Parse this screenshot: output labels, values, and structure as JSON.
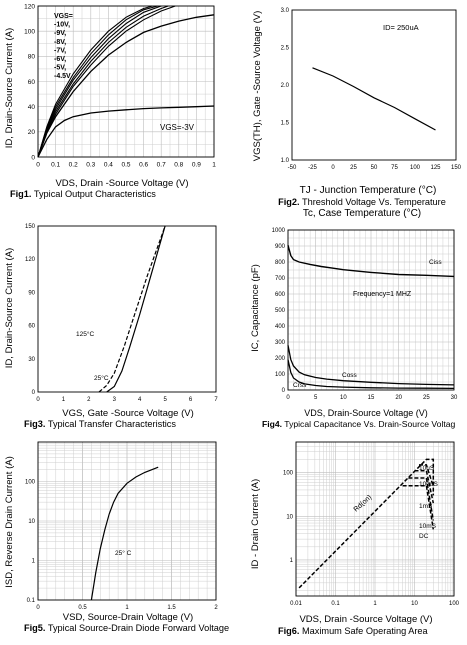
{
  "figures": [
    {
      "id": "fig1",
      "caption_num": "Fig1.",
      "caption_text": "Typical Output Characteristics",
      "chart_data": {
        "type": "line",
        "ylabel": "ID, Drain-Source Current (A)",
        "xlabel": "VDS, Drain -Source Voltage (V)",
        "xticks": [
          "0",
          "0.1",
          "0.2",
          "0.3",
          "0.4",
          "0.5",
          "0.6",
          "0.7",
          "0.8",
          "0.9",
          "1"
        ],
        "yticks": [
          "0",
          "20",
          "40",
          "60",
          "80",
          "100",
          "120"
        ],
        "xlim": [
          0,
          1
        ],
        "ylim": [
          0,
          120
        ],
        "grid": true,
        "legend_lines": [
          "VGS=",
          "-10V,",
          "-9V,",
          "-8V,",
          "-7V,",
          "-6V,",
          "-5V,",
          "-4.5V"
        ],
        "annotation": "VGS=-3V",
        "series": [
          {
            "x": [
              0,
              0.05,
              0.1,
              0.2,
              0.3,
              0.4,
              0.5,
              0.6,
              0.65
            ],
            "y": [
              0,
              24,
              42,
              66,
              85,
              100,
              111,
              118,
              120
            ]
          },
          {
            "x": [
              0,
              0.05,
              0.1,
              0.2,
              0.3,
              0.4,
              0.5,
              0.6,
              0.68
            ],
            "y": [
              0,
              23,
              40,
              63,
              82,
              97,
              109,
              117,
              120
            ]
          },
          {
            "x": [
              0,
              0.05,
              0.1,
              0.2,
              0.3,
              0.4,
              0.5,
              0.6,
              0.7
            ],
            "y": [
              0,
              22,
              38,
              61,
              79,
              94,
              106,
              115,
              120
            ]
          },
          {
            "x": [
              0,
              0.05,
              0.1,
              0.2,
              0.3,
              0.4,
              0.5,
              0.6,
              0.7,
              0.74
            ],
            "y": [
              0,
              21,
              36,
              58,
              76,
              91,
              103,
              112,
              118,
              120
            ]
          },
          {
            "x": [
              0,
              0.05,
              0.1,
              0.2,
              0.3,
              0.4,
              0.5,
              0.6,
              0.7,
              0.78
            ],
            "y": [
              0,
              20,
              34,
              56,
              73,
              88,
              100,
              109,
              116,
              120
            ]
          },
          {
            "x": [
              0,
              0.05,
              0.1,
              0.2,
              0.3,
              0.4,
              0.5,
              0.6,
              0.7,
              0.8,
              0.9,
              1.0
            ],
            "y": [
              0,
              19,
              32,
              52,
              68,
              81,
              91,
              99,
              104,
              108,
              111,
              113
            ]
          },
          {
            "x": [
              0,
              0.05,
              0.1,
              0.15,
              0.2,
              0.3,
              0.4,
              0.5,
              0.6,
              0.7,
              0.8,
              0.9,
              1.0
            ],
            "y": [
              0,
              14,
              24,
              29,
              32,
              35,
              36.5,
              37.5,
              38.5,
              39,
              39.5,
              40,
              40.5
            ]
          }
        ]
      }
    },
    {
      "id": "fig2",
      "caption_num": "Fig2.",
      "caption_text": "Threshold Voltage Vs. Temperature",
      "caption_text2": "Tc, Case Temperature (°C)",
      "chart_data": {
        "type": "line",
        "ylabel": "VGS(TH), Gate -Source Voltage (V)",
        "xlabel": "TJ - Junction Temperature (°C)",
        "xticks": [
          "-50",
          "-25",
          "0",
          "25",
          "50",
          "75",
          "100",
          "125",
          "150"
        ],
        "yticks": [
          "1.0",
          "1.5",
          "2.0",
          "2.5",
          "3.0"
        ],
        "xlim": [
          -50,
          150
        ],
        "ylim": [
          1.0,
          3.0
        ],
        "grid": false,
        "annotation": "ID= 250uA",
        "series": [
          {
            "x": [
              -25,
              0,
              25,
              50,
              75,
              100,
              125
            ],
            "y": [
              2.23,
              2.12,
              1.98,
              1.83,
              1.7,
              1.55,
              1.4
            ]
          }
        ]
      }
    },
    {
      "id": "fig3",
      "caption_num": "Fig3.",
      "caption_text": "Typical Transfer Characteristics",
      "chart_data": {
        "type": "line",
        "ylabel": "ID, Drain-Source Current (A)",
        "xlabel": "VGS, Gate -Source Voltage (V)",
        "xticks": [
          "0",
          "1",
          "2",
          "3",
          "4",
          "5",
          "6",
          "7"
        ],
        "yticks": [
          "0",
          "30",
          "60",
          "90",
          "120",
          "150"
        ],
        "xlim": [
          0,
          7
        ],
        "ylim": [
          0,
          150
        ],
        "grid": false,
        "series": [
          {
            "name": "25°C",
            "x": [
              2.7,
              3.0,
              3.3,
              3.6,
              4.0,
              4.5,
              5.0
            ],
            "y": [
              0,
              5,
              19,
              40,
              70,
              110,
              150
            ]
          },
          {
            "name": "125°C",
            "x": [
              2.4,
              2.7,
              3.0,
              3.4,
              3.8,
              4.3,
              5.0
            ],
            "y": [
              0,
              6,
              17,
              42,
              70,
              105,
              150
            ]
          }
        ]
      }
    },
    {
      "id": "fig4",
      "caption_num": "Fig4.",
      "caption_text": "Typical Capacitance Vs. Drain-Source Voltag",
      "chart_data": {
        "type": "line",
        "ylabel": "IC, Capacitance (pF)",
        "xlabel": "VDS, Drain-Source Voltage (V)",
        "xticks": [
          "0",
          "5",
          "10",
          "15",
          "20",
          "25",
          "30"
        ],
        "yticks": [
          "0",
          "100",
          "200",
          "300",
          "400",
          "500",
          "600",
          "700",
          "800",
          "900",
          "1000"
        ],
        "xlim": [
          0,
          30
        ],
        "ylim": [
          0,
          1000
        ],
        "grid": true,
        "annotation": "Frequency=1 MHZ",
        "series": [
          {
            "name": "Ciss",
            "x": [
              0,
              0.5,
              1,
              2,
              4,
              6,
              8,
              10,
              15,
              20,
              25,
              30
            ],
            "y": [
              905,
              840,
              815,
              800,
              785,
              772,
              762,
              752,
              735,
              722,
              717,
              710
            ]
          },
          {
            "name": "Coss",
            "x": [
              0,
              0.5,
              1,
              2,
              3,
              5,
              7,
              10,
              15,
              20,
              25,
              30
            ],
            "y": [
              280,
              190,
              150,
              112,
              95,
              78,
              68,
              58,
              48,
              40,
              35,
              32
            ]
          },
          {
            "name": "Crss",
            "x": [
              0,
              0.5,
              1,
              2,
              3,
              5,
              7,
              10,
              15,
              20,
              25,
              30
            ],
            "y": [
              190,
              110,
              75,
              50,
              38,
              28,
              22,
              18,
              14,
              12,
              11,
              10
            ]
          }
        ]
      }
    },
    {
      "id": "fig5",
      "caption_num": "Fig5.",
      "caption_text": "Typical Source-Drain Diode Forward Voltage",
      "chart_data": {
        "type": "line",
        "ylabel": "ISD, Reverse Drain Current (A)",
        "xlabel": "VSD, Source-Drain Voltage (V)",
        "xticks": [
          "0",
          "0.5",
          "1",
          "1.5",
          "2"
        ],
        "yticks": [
          "0.1",
          "1",
          "10",
          "100"
        ],
        "xlim": [
          0,
          2
        ],
        "ylim": [
          0.1,
          1000
        ],
        "yscale": "log",
        "grid": true,
        "annotation": "25° C",
        "series": [
          {
            "name": "25° C",
            "x": [
              0.6,
              0.65,
              0.7,
              0.75,
              0.8,
              0.85,
              0.9,
              1.0,
              1.1,
              1.2,
              1.35
            ],
            "y": [
              0.1,
              0.5,
              2,
              6,
              15,
              30,
              50,
              90,
              130,
              170,
              230
            ]
          }
        ]
      }
    },
    {
      "id": "fig6",
      "caption_num": "Fig6.",
      "caption_text": "Maximum Safe Operating Area",
      "chart_data": {
        "type": "line",
        "ylabel": "ID - Drain Current (A)",
        "xlabel": "VDS, Drain -Source Voltage (V)",
        "xticks": [
          "0.01",
          "0.1",
          "1",
          "10",
          "100"
        ],
        "yticks": [
          "1",
          "10",
          "100"
        ],
        "xlim": [
          0.01,
          100
        ],
        "ylim": [
          0.15,
          500
        ],
        "xscale": "log",
        "yscale": "log",
        "grid": true,
        "annotation": "Rd(on)",
        "series": [
          {
            "name": "10uS",
            "x": [
              0.012,
              20,
              30,
              30
            ],
            "y": [
              0.23,
              200,
              200,
              30
            ]
          },
          {
            "name": "100uS",
            "x": [
              13,
              20,
              30
            ],
            "y": [
              150,
              150,
              48
            ]
          },
          {
            "name": "1mS",
            "x": [
              10,
              20,
              30
            ],
            "y": [
              110,
              110,
              20
            ]
          },
          {
            "name": "10mS",
            "x": [
              7,
              20,
              30
            ],
            "y": [
              75,
              75,
              8
            ]
          },
          {
            "name": "DC",
            "x": [
              5,
              20,
              30
            ],
            "y": [
              50,
              50,
              5
            ]
          }
        ]
      }
    }
  ],
  "fig1_leglines": [
    {
      "text": "VGS=",
      "cls": "gs"
    },
    {
      "text": "-10V,"
    },
    {
      "text": "-9V,"
    },
    {
      "text": "-8V,"
    },
    {
      "text": "-7V,"
    },
    {
      "text": "-6V,"
    },
    {
      "text": "-5V,"
    },
    {
      "text": "-4.5V"
    }
  ]
}
